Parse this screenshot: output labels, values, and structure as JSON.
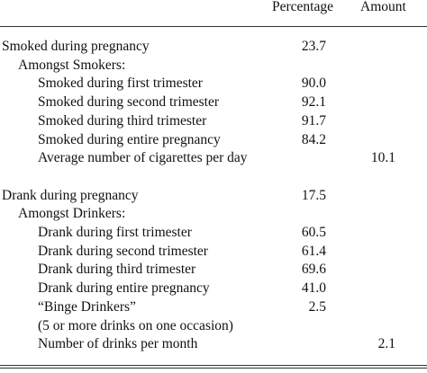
{
  "table": {
    "columns": [
      "Percentage",
      "Amount"
    ],
    "sections": [
      {
        "label": "Smoked during pregnancy",
        "percentage": "23.7",
        "subheading": "Amongst Smokers:",
        "items": [
          {
            "label": "Smoked during first trimester",
            "percentage": "90.0"
          },
          {
            "label": "Smoked during second trimester",
            "percentage": "92.1"
          },
          {
            "label": "Smoked during third trimester",
            "percentage": "91.7"
          },
          {
            "label": "Smoked during entire pregnancy",
            "percentage": "84.2"
          },
          {
            "label": "Average number of cigarettes per day",
            "amount": "10.1"
          }
        ]
      },
      {
        "label": "Drank during pregnancy",
        "percentage": "17.5",
        "subheading": "Amongst Drinkers:",
        "items": [
          {
            "label": "Drank during first trimester",
            "percentage": "60.5"
          },
          {
            "label": "Drank during second trimester",
            "percentage": "61.4"
          },
          {
            "label": "Drank during third trimester",
            "percentage": "69.6"
          },
          {
            "label": "Drank during entire pregnancy",
            "percentage": "41.0"
          },
          {
            "label": "“Binge Drinkers”",
            "percentage": "2.5"
          },
          {
            "label": "(5 or more drinks on one occasion)"
          },
          {
            "label": "Number of drinks per month",
            "amount": "2.1"
          }
        ]
      }
    ]
  }
}
